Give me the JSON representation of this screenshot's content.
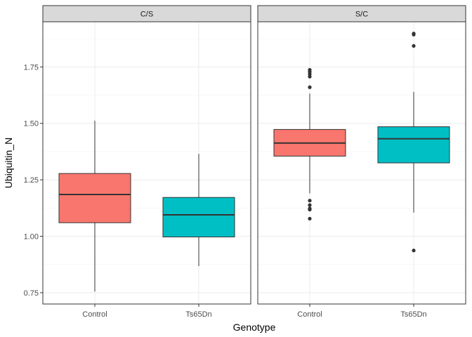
{
  "chart_data": {
    "type": "boxplot",
    "xlabel": "Genotype",
    "ylabel": "Ubiquitin_N",
    "ylim": [
      0.7,
      1.95
    ],
    "y_ticks": [
      0.75,
      1.0,
      1.25,
      1.5,
      1.75
    ],
    "y_tick_labels": [
      "0.75",
      "1.00",
      "1.25",
      "1.50",
      "1.75"
    ],
    "categories": [
      "Control",
      "Ts65Dn"
    ],
    "grid": true,
    "legend": "none",
    "colors": {
      "Control": "#F8766D",
      "Ts65Dn": "#00BFC4"
    },
    "panels": [
      {
        "label": "C/S",
        "boxes": [
          {
            "category": "Control",
            "lower_whisker": 0.755,
            "q1": 1.06,
            "median": 1.185,
            "q3": 1.278,
            "upper_whisker": 1.512,
            "outliers": []
          },
          {
            "category": "Ts65Dn",
            "lower_whisker": 0.868,
            "q1": 0.997,
            "median": 1.095,
            "q3": 1.172,
            "upper_whisker": 1.365,
            "outliers": []
          }
        ]
      },
      {
        "label": "S/C",
        "boxes": [
          {
            "category": "Control",
            "lower_whisker": 1.19,
            "q1": 1.355,
            "median": 1.413,
            "q3": 1.473,
            "upper_whisker": 1.632,
            "outliers": [
              1.078,
              1.118,
              1.123,
              1.138,
              1.158,
              1.66,
              1.707,
              1.718,
              1.728,
              1.737
            ]
          },
          {
            "category": "Ts65Dn",
            "lower_whisker": 1.105,
            "q1": 1.325,
            "median": 1.432,
            "q3": 1.485,
            "upper_whisker": 1.64,
            "outliers": [
              0.937,
              1.843,
              1.893,
              1.898
            ]
          }
        ]
      }
    ]
  }
}
